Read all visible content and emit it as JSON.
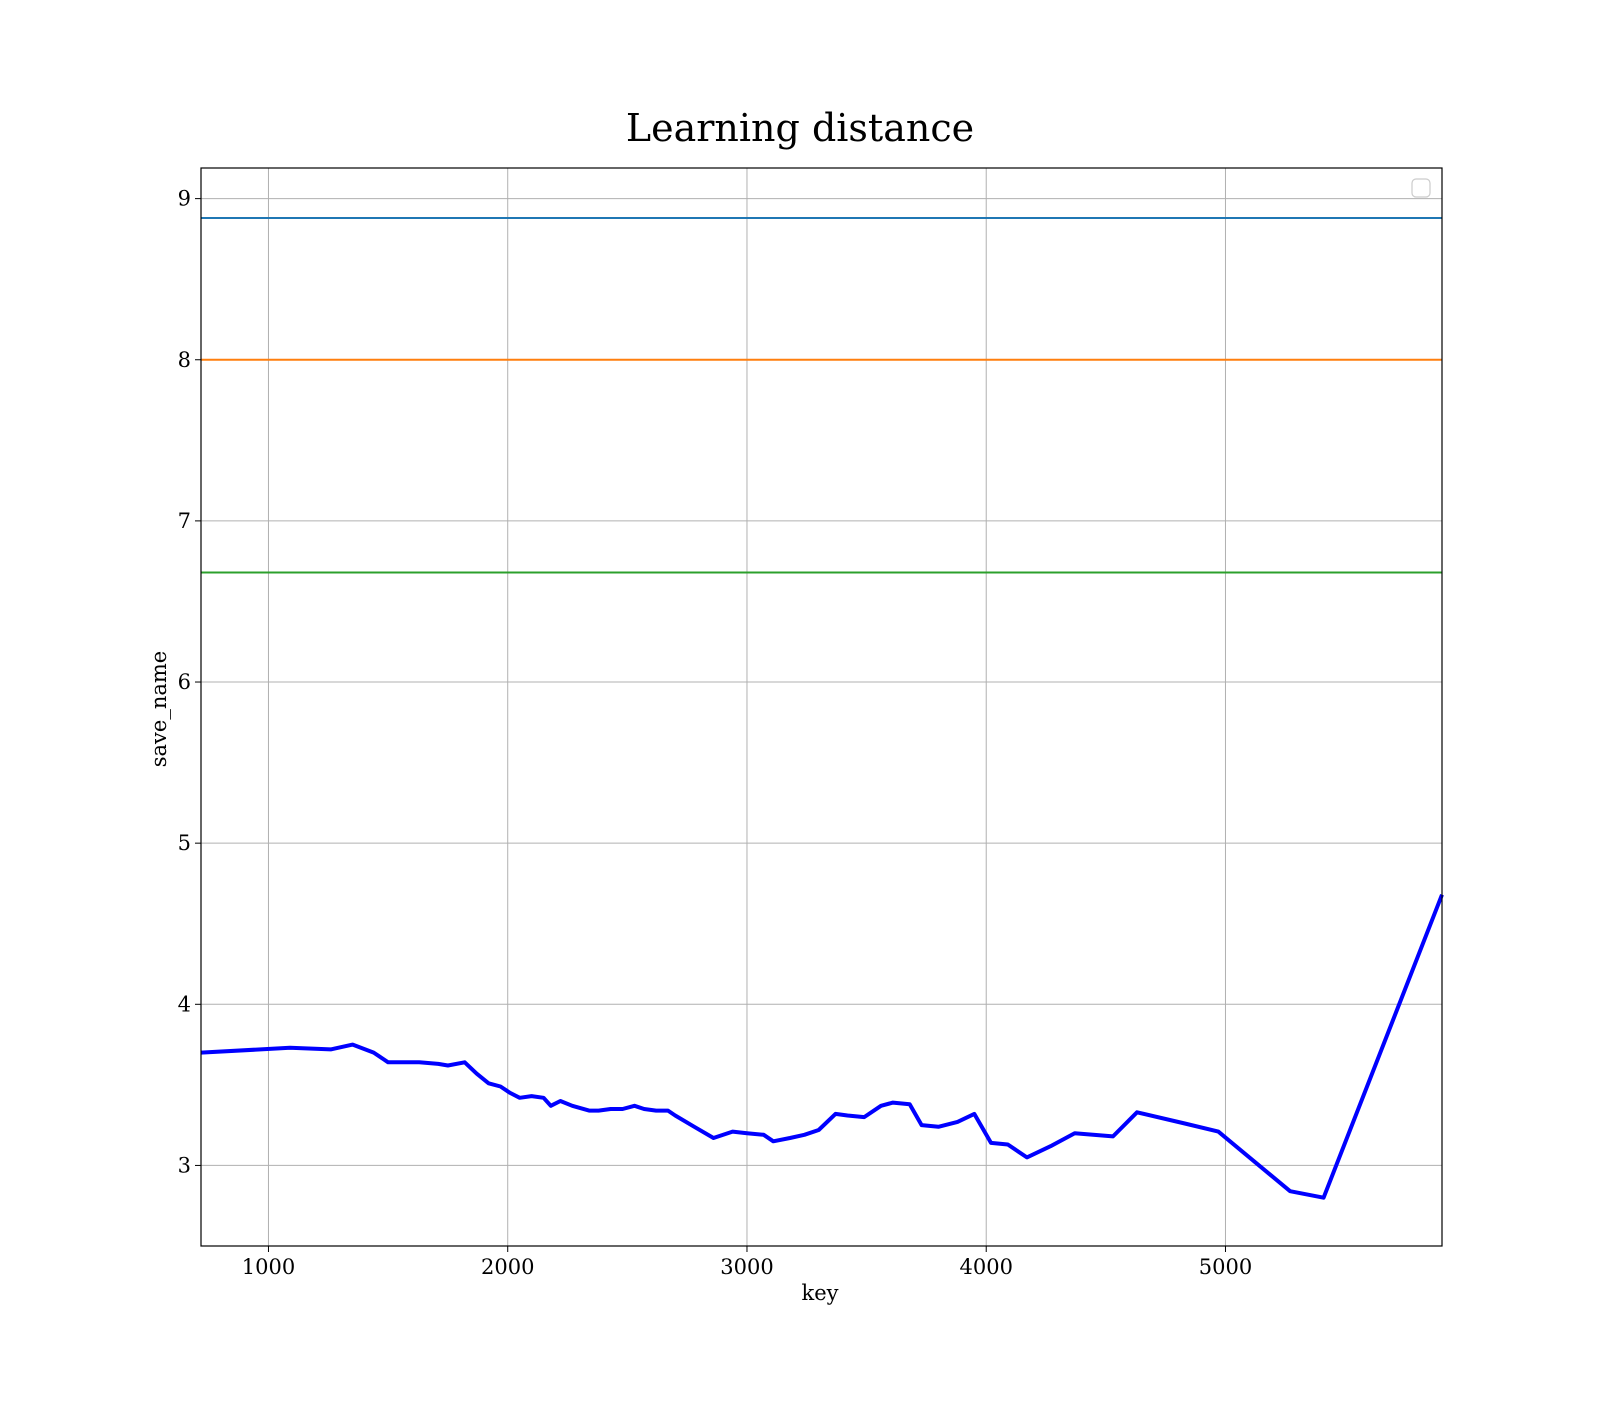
{
  "chart_data": {
    "type": "line",
    "title": "Learning distance",
    "xlabel": "key",
    "ylabel": "save_name",
    "xlim": [
      718,
      5905
    ],
    "ylim": [
      2.5,
      9.19
    ],
    "xticks": [
      1000,
      2000,
      3000,
      4000,
      5000
    ],
    "xtick_labels": [
      "1000",
      "2000",
      "3000",
      "4000",
      "5000"
    ],
    "yticks": [
      3,
      4,
      5,
      6,
      7,
      8,
      9
    ],
    "ytick_labels": [
      "3",
      "4",
      "5",
      "6",
      "7",
      "8",
      "9"
    ],
    "grid": true,
    "legend": {
      "position": "top-right",
      "entries": []
    },
    "hlines": [
      {
        "y": 8.88,
        "color": "#1f77b4"
      },
      {
        "y": 8.0,
        "color": "#ff7f0e"
      },
      {
        "y": 6.68,
        "color": "#2ca02c"
      }
    ],
    "series": [
      {
        "color": "#0000ff",
        "x": [
          718,
          1090,
          1260,
          1352,
          1440,
          1500,
          1630,
          1710,
          1750,
          1820,
          1870,
          1920,
          1970,
          2010,
          2050,
          2100,
          2150,
          2180,
          2220,
          2270,
          2340,
          2380,
          2430,
          2480,
          2530,
          2570,
          2620,
          2670,
          2700,
          2780,
          2860,
          2940,
          3000,
          3070,
          3110,
          3180,
          3240,
          3300,
          3370,
          3420,
          3490,
          3560,
          3610,
          3680,
          3730,
          3800,
          3880,
          3950,
          4020,
          4090,
          4170,
          4270,
          4370,
          4530,
          4630,
          4830,
          4970,
          5270,
          5410,
          5905
        ],
        "y": [
          3.7,
          3.73,
          3.72,
          3.75,
          3.7,
          3.64,
          3.64,
          3.63,
          3.62,
          3.64,
          3.57,
          3.51,
          3.49,
          3.45,
          3.42,
          3.43,
          3.42,
          3.37,
          3.4,
          3.37,
          3.34,
          3.34,
          3.35,
          3.35,
          3.37,
          3.35,
          3.34,
          3.34,
          3.31,
          3.24,
          3.17,
          3.21,
          3.2,
          3.19,
          3.15,
          3.17,
          3.19,
          3.22,
          3.32,
          3.31,
          3.3,
          3.37,
          3.39,
          3.38,
          3.25,
          3.24,
          3.27,
          3.32,
          3.14,
          3.13,
          3.05,
          3.12,
          3.2,
          3.18,
          3.33,
          3.26,
          3.21,
          2.84,
          2.8,
          4.68
        ]
      }
    ]
  }
}
